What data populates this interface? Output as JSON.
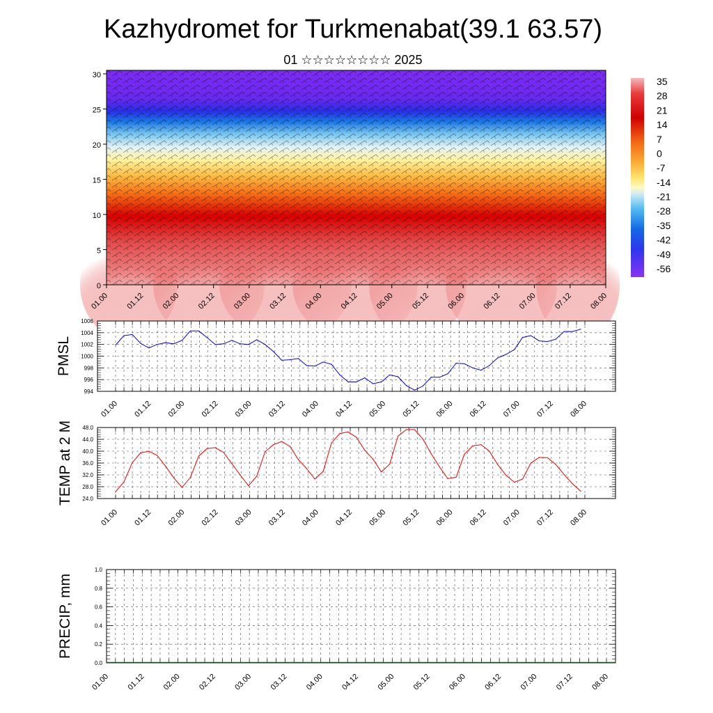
{
  "title": "Kazhydromet for Turkmenabat(39.1 63.57)",
  "subtitle": "01 ☆☆☆☆☆☆☆☆ 2025",
  "colorbar": {
    "labels": [
      "35",
      "28",
      "21",
      "14",
      "7",
      "0",
      "-7",
      "-14",
      "-21",
      "-28",
      "-35",
      "-42",
      "-49",
      "-56"
    ],
    "colors": [
      "#f4a9a9",
      "#e82020",
      "#d90000",
      "#f06010",
      "#f8a030",
      "#fde06a",
      "#fff8b0",
      "#c8e8f8",
      "#40b0f0",
      "#1070e0",
      "#3040f0",
      "#6020f0",
      "#8030f0"
    ]
  },
  "chart_data": [
    {
      "type": "heatmap",
      "name_hint": "cross-section",
      "x_tick_labels": [
        "01.00",
        "01.12",
        "02.00",
        "02.12",
        "03.00",
        "03.12",
        "04.00",
        "04.12",
        "05.00",
        "05.12",
        "06.00",
        "06.12",
        "07.00",
        "07.12",
        "08.00"
      ],
      "y_tick_labels": [
        "0",
        "5",
        "10",
        "15",
        "20",
        "25",
        "30"
      ],
      "ylim": [
        0,
        30.5
      ],
      "value_range": [
        -56,
        35
      ],
      "grid": false
    },
    {
      "type": "line",
      "ylabel": "PMSL",
      "color": "#0000ee",
      "ylim": [
        994,
        1006
      ],
      "y_tick_labels": [
        "994",
        "996",
        "998",
        "1000",
        "1002",
        "1004",
        "1006"
      ],
      "x_tick_labels": [
        "01.00",
        "01.12",
        "02.00",
        "02.12",
        "03.00",
        "03.12",
        "04.00",
        "04.12",
        "05.00",
        "05.12",
        "06.00",
        "06.12",
        "07.00",
        "07.12",
        "08.00"
      ],
      "x_step_hours": 3,
      "values": [
        1001.9,
        1003.5,
        1003.7,
        1002.2,
        1001.4,
        1002.0,
        1002.3,
        1002.1,
        1002.7,
        1004.3,
        1004.3,
        1003.2,
        1002.0,
        1002.1,
        1002.7,
        1002.1,
        1002.0,
        1002.8,
        1002.0,
        1000.8,
        999.3,
        999.4,
        999.6,
        998.4,
        998.3,
        999.0,
        998.6,
        996.8,
        995.6,
        995.6,
        996.3,
        995.3,
        995.6,
        996.8,
        996.5,
        995.0,
        994.2,
        994.9,
        996.4,
        996.4,
        997.0,
        998.8,
        998.7,
        998.0,
        997.6,
        998.4,
        999.7,
        1000.3,
        1001.1,
        1003.2,
        1003.5,
        1002.6,
        1002.5,
        1002.9,
        1004.2,
        1004.2,
        1004.6
      ],
      "grid": true
    },
    {
      "type": "line",
      "ylabel": "TEMP at 2 M",
      "color": "#ee0000",
      "ylim": [
        24,
        48
      ],
      "y_tick_labels": [
        "24.0",
        "28.0",
        "32.0",
        "36.0",
        "40.0",
        "44.0",
        "48.0"
      ],
      "x_tick_labels": [
        "01.00",
        "01.12",
        "02.00",
        "02.12",
        "03.00",
        "03.12",
        "04.00",
        "04.12",
        "05.00",
        "05.12",
        "06.00",
        "06.12",
        "07.00",
        "07.12",
        "08.00"
      ],
      "x_step_hours": 3,
      "values": [
        26.3,
        29.6,
        36.1,
        39.4,
        40.0,
        38.6,
        35.0,
        31.0,
        27.8,
        31.1,
        38.3,
        40.9,
        41.2,
        39.6,
        35.8,
        32.0,
        28.3,
        31.6,
        39.8,
        42.2,
        43.3,
        41.6,
        37.2,
        34.1,
        30.6,
        33.2,
        42.8,
        46.0,
        46.5,
        44.7,
        40.3,
        37.3,
        33.0,
        35.6,
        45.1,
        47.3,
        47.3,
        44.1,
        39.1,
        34.7,
        30.7,
        31.2,
        39.0,
        41.8,
        42.2,
        40.0,
        35.5,
        31.9,
        29.5,
        30.6,
        36.0,
        37.9,
        37.8,
        35.5,
        32.1,
        29.0,
        26.5
      ],
      "grid": true
    },
    {
      "type": "bar",
      "ylabel": "PRECIP, mm",
      "color": "#006400",
      "ylim": [
        0,
        1.0
      ],
      "y_tick_labels": [
        "0.0",
        "0.2",
        "0.4",
        "0.6",
        "0.8",
        "1.0"
      ],
      "x_tick_labels": [
        "01.00",
        "01.12",
        "02.00",
        "02.12",
        "03.00",
        "03.12",
        "04.00",
        "04.12",
        "05.00",
        "05.12",
        "06.00",
        "06.12",
        "07.00",
        "07.12",
        "08.00"
      ],
      "x_step_hours": 3,
      "values": [
        0,
        0,
        0,
        0,
        0,
        0,
        0,
        0,
        0,
        0,
        0,
        0,
        0,
        0,
        0,
        0,
        0,
        0,
        0,
        0,
        0,
        0,
        0,
        0,
        0,
        0,
        0,
        0,
        0,
        0,
        0,
        0,
        0,
        0,
        0,
        0,
        0,
        0,
        0,
        0,
        0,
        0,
        0,
        0,
        0,
        0,
        0,
        0,
        0,
        0,
        0,
        0,
        0,
        0,
        0,
        0,
        0
      ],
      "grid": true
    }
  ]
}
